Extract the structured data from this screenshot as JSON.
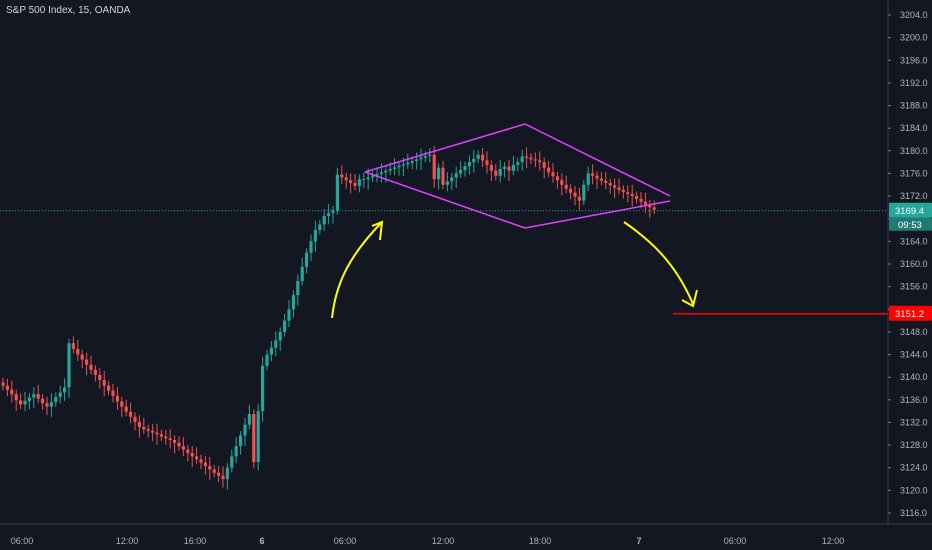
{
  "header": {
    "symbol": "S&P 500 Index, 15, OANDA"
  },
  "price_axis": {
    "ticks": [
      "3204.0",
      "3200.0",
      "3196.0",
      "3192.0",
      "3188.0",
      "3184.0",
      "3180.0",
      "3176.0",
      "3172.0",
      "3168.0",
      "3164.0",
      "3160.0",
      "3156.0",
      "3152.0",
      "3148.0",
      "3144.0",
      "3140.0",
      "3136.0",
      "3132.0",
      "3128.0",
      "3124.0",
      "3120.0",
      "3116.0"
    ],
    "last_price": "3169.4",
    "countdown": "09:53",
    "target_price": "3151.2"
  },
  "time_axis": {
    "ticks": [
      "06:00",
      "12:00",
      "16:00",
      "6",
      "06:00",
      "12:00",
      "18:00",
      "7",
      "06:00",
      "12:00"
    ]
  },
  "colors": {
    "background": "#131722",
    "up_candle": "#26a69a",
    "down_candle": "#ef5350",
    "pattern_lines": "#e040fb",
    "arrows": "#ffff00",
    "target_line": "#ff0000",
    "last_price_badge": "#26a69a"
  },
  "chart_data": {
    "type": "candlestick",
    "title": "S&P 500 Index, 15, OANDA",
    "ylim": [
      3114.0,
      3206.0
    ],
    "x_ticks": [
      "06:00",
      "12:00",
      "16:00",
      "6",
      "06:00",
      "12:00",
      "18:00",
      "7",
      "06:00",
      "12:00"
    ],
    "close_path": [
      3138.5,
      3137.8,
      3137.0,
      3135.9,
      3135.2,
      3135.8,
      3136.4,
      3137.0,
      3136.2,
      3135.4,
      3134.8,
      3135.6,
      3136.5,
      3137.3,
      3138.2,
      3146.0,
      3145.0,
      3144.0,
      3143.1,
      3142.2,
      3141.3,
      3140.4,
      3139.5,
      3138.5,
      3137.6,
      3136.7,
      3135.7,
      3134.8,
      3133.9,
      3133.0,
      3132.1,
      3131.2,
      3130.8,
      3130.5,
      3130.2,
      3129.9,
      3129.5,
      3129.2,
      3128.9,
      3128.4,
      3127.8,
      3127.2,
      3126.6,
      3126.0,
      3125.5,
      3124.9,
      3124.3,
      3123.7,
      3123.1,
      3122.6,
      3122.0,
      3124.0,
      3126.0,
      3127.8,
      3129.7,
      3131.6,
      3133.5,
      3125.0,
      3134.0,
      3142.0,
      3144.0,
      3145.2,
      3146.5,
      3148.0,
      3150.0,
      3152.0,
      3154.5,
      3157.0,
      3159.5,
      3162.0,
      3164.0,
      3166.0,
      3167.0,
      3168.5,
      3169.0,
      3169.5,
      3175.8,
      3175.3,
      3174.8,
      3174.3,
      3173.8,
      3175.0,
      3175.0,
      3175.3,
      3175.6,
      3175.9,
      3176.2,
      3176.5,
      3176.8,
      3177.1,
      3177.4,
      3177.6,
      3177.9,
      3178.2,
      3178.5,
      3178.8,
      3179.1,
      3179.3,
      3175.0,
      3177.0,
      3174.0,
      3174.6,
      3175.3,
      3176.0,
      3176.6,
      3177.3,
      3178.0,
      3178.6,
      3179.3,
      3178.3,
      3177.5,
      3176.5,
      3175.6,
      3176.8,
      3177.2,
      3176.5,
      3177.5,
      3178.0,
      3179.0,
      3178.8,
      3178.5,
      3178.3,
      3178.0,
      3177.0,
      3176.2,
      3175.5,
      3174.8,
      3174.0,
      3173.3,
      3172.6,
      3171.9,
      3171.2,
      3174.0,
      3176.0,
      3175.6,
      3175.1,
      3174.7,
      3174.3,
      3173.9,
      3173.5,
      3173.1,
      3172.7,
      3172.4,
      3172.0,
      3171.5,
      3171.0,
      3170.5,
      3170.0,
      3169.6
    ]
  }
}
